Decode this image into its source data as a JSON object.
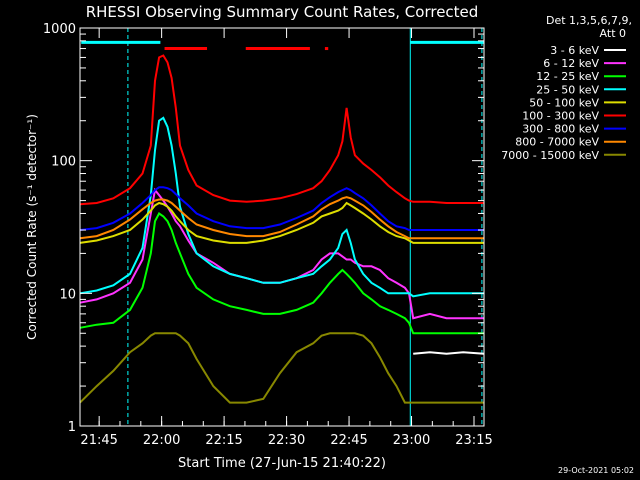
{
  "chart_data": {
    "type": "line",
    "title": "RHESSI Observing Summary Count Rates, Corrected",
    "xlabel": "Start Time (27-Jun-15 21:40:22)",
    "ylabel": "Corrected Count Rate (s⁻¹ detector⁻¹)",
    "yscale": "log",
    "ylim": [
      1,
      1000
    ],
    "xlim_minutes_from_start": [
      0,
      97
    ],
    "x_ticks": [
      {
        "label": "21:45",
        "minutes": 4.6
      },
      {
        "label": "22:00",
        "minutes": 19.6
      },
      {
        "label": "22:15",
        "minutes": 34.6
      },
      {
        "label": "22:30",
        "minutes": 49.6
      },
      {
        "label": "22:45",
        "minutes": 64.6
      },
      {
        "label": "23:00",
        "minutes": 79.6
      },
      {
        "label": "23:15",
        "minutes": 94.6
      }
    ],
    "y_ticks": [
      {
        "label": "1",
        "value": 1
      },
      {
        "label": "10",
        "value": 10
      },
      {
        "label": "100",
        "value": 100
      },
      {
        "label": "1000",
        "value": 1000
      }
    ],
    "legend": {
      "position": "top-right",
      "header": [
        "Det 1,3,5,6,7,9,",
        "Att 0"
      ]
    },
    "x_sample_minutes": [
      0,
      4,
      8,
      12,
      15,
      17,
      18,
      19,
      20,
      21,
      22,
      23,
      24,
      26,
      28,
      32,
      36,
      40,
      44,
      48,
      52,
      56,
      58,
      60,
      62,
      63,
      64,
      65,
      66,
      68,
      70,
      72,
      74,
      76,
      78,
      79,
      80,
      84,
      88,
      92,
      97
    ],
    "series": [
      {
        "name": "3 - 6 keV",
        "color": "#ffffff",
        "values": [
          null,
          null,
          null,
          null,
          null,
          null,
          null,
          null,
          null,
          null,
          null,
          null,
          null,
          null,
          null,
          null,
          null,
          null,
          null,
          null,
          null,
          null,
          null,
          null,
          null,
          null,
          null,
          null,
          null,
          null,
          null,
          null,
          null,
          null,
          null,
          null,
          3.5,
          3.6,
          3.5,
          3.6,
          3.5
        ]
      },
      {
        "name": "6 - 12 keV",
        "color": "#ff33ff",
        "values": [
          8.5,
          9,
          10,
          12,
          18,
          40,
          60,
          55,
          50,
          45,
          40,
          35,
          32,
          25,
          20,
          17,
          14,
          13,
          12,
          12,
          13,
          15,
          18,
          20,
          20,
          19,
          18,
          18,
          17,
          16,
          16,
          15,
          13,
          12,
          11,
          10,
          6.5,
          7,
          6.5,
          6.5,
          6.5
        ]
      },
      {
        "name": "12 - 25 keV",
        "color": "#00ff00",
        "values": [
          5.5,
          5.8,
          6,
          7.5,
          11,
          20,
          35,
          40,
          38,
          35,
          30,
          24,
          20,
          14,
          11,
          9,
          8,
          7.5,
          7,
          7,
          7.5,
          8.5,
          10,
          12,
          14,
          15,
          14,
          13,
          12,
          10,
          9,
          8,
          7.5,
          7,
          6.5,
          6,
          5,
          5,
          5,
          5,
          5
        ]
      },
      {
        "name": "25 - 50 keV",
        "color": "#00ffff",
        "values": [
          10,
          10.5,
          11.5,
          14,
          22,
          55,
          120,
          200,
          210,
          180,
          130,
          80,
          45,
          28,
          20,
          16,
          14,
          13,
          12,
          12,
          13,
          14,
          16,
          18,
          22,
          28,
          30,
          24,
          18,
          14,
          12,
          11,
          10,
          10,
          10,
          10,
          9.5,
          10,
          10,
          10,
          10
        ]
      },
      {
        "name": "50 - 100 keV",
        "color": "#dddd00",
        "values": [
          24,
          25,
          27,
          30,
          36,
          42,
          46,
          48,
          47,
          45,
          42,
          38,
          35,
          30,
          27,
          25,
          24,
          24,
          25,
          27,
          30,
          34,
          38,
          40,
          42,
          44,
          48,
          46,
          44,
          40,
          36,
          32,
          29,
          27,
          26,
          25,
          24,
          24,
          24,
          24,
          24
        ]
      },
      {
        "name": "100 - 300 keV",
        "color": "#ff0000",
        "values": [
          47,
          48,
          52,
          62,
          80,
          130,
          400,
          600,
          620,
          550,
          420,
          250,
          130,
          85,
          65,
          55,
          50,
          49,
          50,
          52,
          56,
          62,
          70,
          85,
          110,
          140,
          250,
          150,
          110,
          95,
          85,
          75,
          65,
          58,
          52,
          50,
          49,
          49,
          48,
          48,
          48
        ]
      },
      {
        "name": "300 - 800 keV",
        "color": "#0000ff",
        "values": [
          30,
          31,
          34,
          40,
          48,
          55,
          60,
          63,
          63,
          62,
          60,
          56,
          52,
          46,
          40,
          35,
          32,
          31,
          31,
          33,
          37,
          42,
          48,
          53,
          58,
          60,
          62,
          60,
          57,
          52,
          46,
          40,
          35,
          32,
          31,
          30,
          30,
          30,
          30,
          30,
          30
        ]
      },
      {
        "name": "800 - 7000 keV",
        "color": "#ff8800",
        "values": [
          26,
          27,
          30,
          36,
          43,
          48,
          50,
          51,
          51,
          50,
          48,
          45,
          42,
          37,
          33,
          30,
          28,
          27,
          27,
          29,
          33,
          38,
          43,
          47,
          50,
          52,
          53,
          52,
          50,
          46,
          41,
          36,
          32,
          29,
          27,
          26,
          26,
          26,
          26,
          26,
          26
        ]
      },
      {
        "name": "7000 - 15000 keV",
        "color": "#888800",
        "values": [
          1.5,
          2,
          2.6,
          3.6,
          4.2,
          4.8,
          5,
          5,
          5,
          5,
          5,
          5,
          4.8,
          4.2,
          3.2,
          2,
          1.5,
          1.5,
          1.6,
          2.5,
          3.6,
          4.2,
          4.8,
          5,
          5,
          5,
          5,
          5,
          5,
          4.8,
          4.2,
          3.3,
          2.5,
          2,
          1.5,
          1.5,
          1.5,
          1.5,
          1.5,
          1.5,
          1.5
        ]
      }
    ],
    "flags": [
      {
        "name": "saa-flag",
        "color": "#00ffff",
        "y_value": 780,
        "segments": [
          [
            0.3,
            19.3
          ],
          [
            79.3,
            97
          ]
        ]
      },
      {
        "name": "flare-flag",
        "color": "#ff0000",
        "y_value": 700,
        "segments": [
          [
            20.3,
            30.5
          ],
          [
            39.8,
            55.2
          ],
          [
            58.8,
            59.6
          ]
        ]
      }
    ],
    "vertical_markers": [
      {
        "name": "marker-1",
        "minutes": 11.5,
        "style": "dashed",
        "color": "#00ffff"
      },
      {
        "name": "marker-2",
        "minutes": 79.3,
        "style": "solid",
        "color": "#00ffff"
      },
      {
        "name": "marker-3",
        "minutes": 96.5,
        "style": "dashed",
        "color": "#00ffff"
      }
    ]
  },
  "footer": {
    "timestamp": "29-Oct-2021 05:02"
  }
}
